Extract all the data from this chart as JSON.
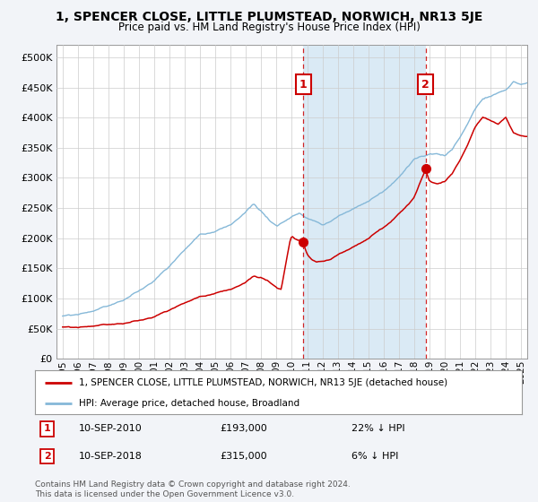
{
  "title": "1, SPENCER CLOSE, LITTLE PLUMSTEAD, NORWICH, NR13 5JE",
  "subtitle": "Price paid vs. HM Land Registry's House Price Index (HPI)",
  "legend_line1": "1, SPENCER CLOSE, LITTLE PLUMSTEAD, NORWICH, NR13 5JE (detached house)",
  "legend_line2": "HPI: Average price, detached house, Broadland",
  "ann1_date": "10-SEP-2010",
  "ann1_price": "£193,000",
  "ann1_pct": "22% ↓ HPI",
  "ann2_date": "10-SEP-2018",
  "ann2_price": "£315,000",
  "ann2_pct": "6% ↓ HPI",
  "footer": "Contains HM Land Registry data © Crown copyright and database right 2024.\nThis data is licensed under the Open Government Licence v3.0.",
  "hpi_color": "#85b8d8",
  "price_color": "#cc0000",
  "shade_color": "#daeaf5",
  "background_color": "#f2f4f8",
  "plot_bg_color": "#ffffff",
  "grid_color": "#cccccc",
  "sale1_year": 2010.75,
  "sale2_year": 2018.75,
  "sale1_price": 193000,
  "sale2_price": 315000,
  "ylim_low": 0,
  "ylim_high": 520000,
  "yticks": [
    0,
    50000,
    100000,
    150000,
    200000,
    250000,
    300000,
    350000,
    400000,
    450000,
    500000
  ],
  "xlim_low": 1994.6,
  "xlim_high": 2025.4
}
